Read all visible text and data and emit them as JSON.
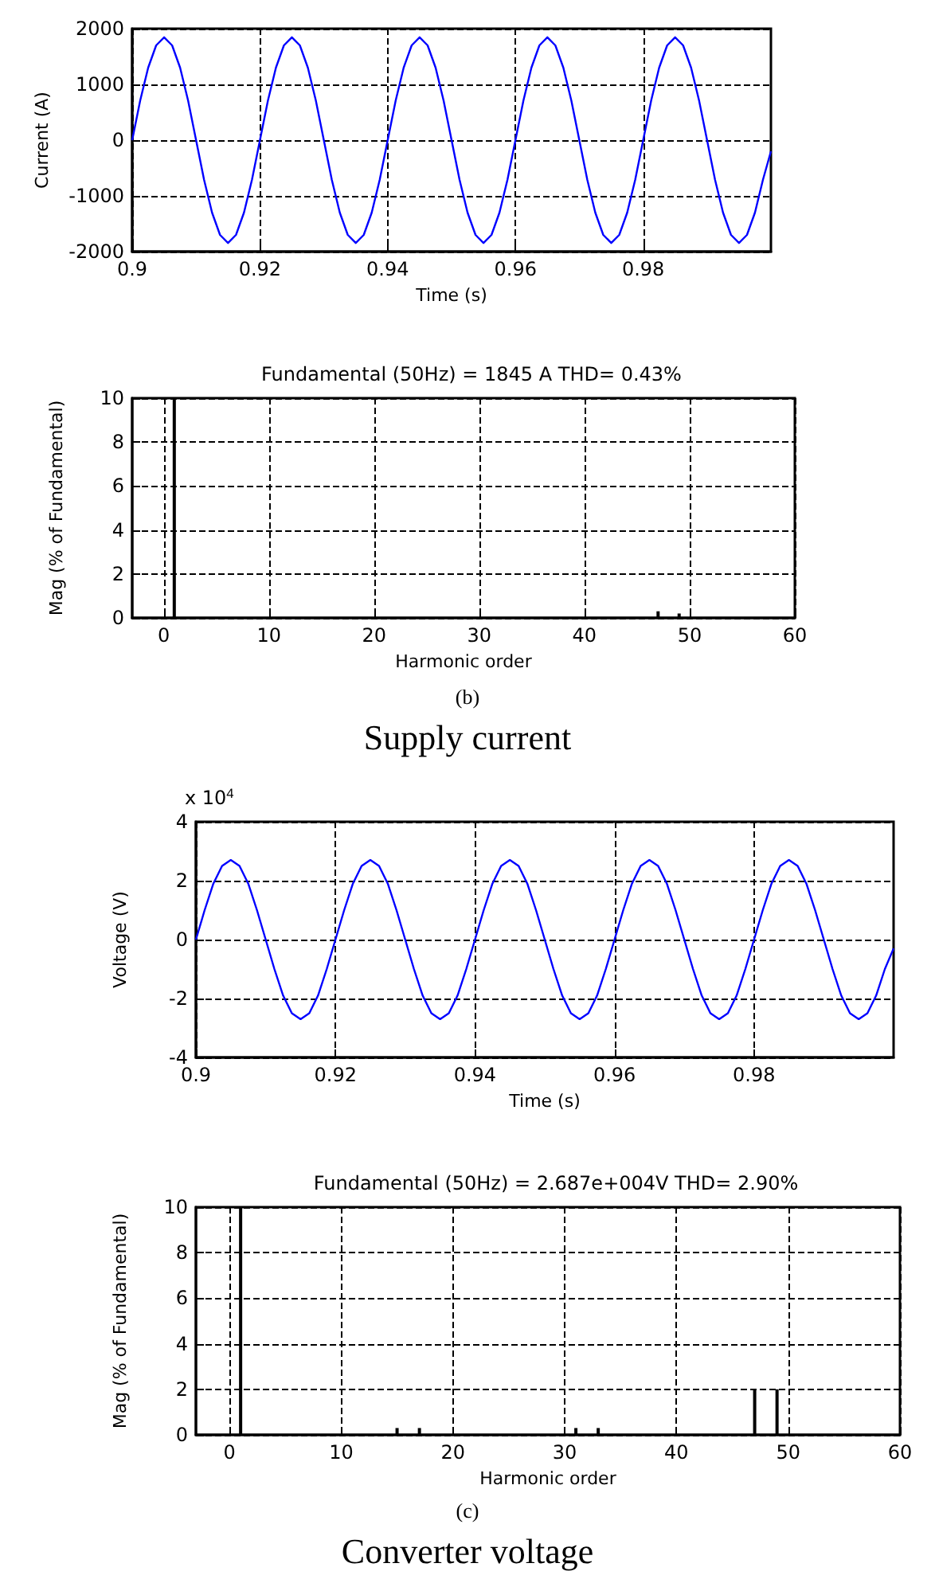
{
  "chart_data": [
    {
      "type": "line",
      "xlabel": "Time (s)",
      "ylabel": "Current (A)",
      "xlim": [
        0.9,
        1.0
      ],
      "xticks": [
        0.9,
        0.92,
        0.94,
        0.96,
        0.98
      ],
      "ylim": [
        -2000,
        2000
      ],
      "yticks": [
        -2000,
        -1000,
        0,
        1000,
        2000
      ],
      "grid": true,
      "series": [
        {
          "color": "#0000ff",
          "x": [
            0.9,
            0.90125,
            0.9025,
            0.90375,
            0.905,
            0.90625,
            0.9075,
            0.90875,
            0.91,
            0.91125,
            0.9125,
            0.91375,
            0.915,
            0.91625,
            0.9175,
            0.91875,
            0.92,
            0.92125,
            0.9225,
            0.92375,
            0.925,
            0.92625,
            0.9275,
            0.92875,
            0.93,
            0.93125,
            0.9325,
            0.93375,
            0.935,
            0.93625,
            0.9375,
            0.93875,
            0.94,
            0.94125,
            0.9425,
            0.94375,
            0.945,
            0.94625,
            0.9475,
            0.94875,
            0.95,
            0.95125,
            0.9525,
            0.95375,
            0.955,
            0.95625,
            0.9575,
            0.95875,
            0.96,
            0.96125,
            0.9625,
            0.96375,
            0.965,
            0.96625,
            0.9675,
            0.96875,
            0.97,
            0.97125,
            0.9725,
            0.97375,
            0.975,
            0.97625,
            0.9775,
            0.97875,
            0.98,
            0.98125,
            0.9825,
            0.98375,
            0.985,
            0.98625,
            0.9875,
            0.98875,
            0.99,
            0.99125,
            0.9925,
            0.99375,
            0.995,
            0.99625,
            0.9975,
            0.99875,
            1.0
          ],
          "values": [
            0,
            710,
            1300,
            1700,
            1845,
            1700,
            1300,
            710,
            0,
            -710,
            -1300,
            -1700,
            -1845,
            -1700,
            -1300,
            -710,
            0,
            710,
            1300,
            1700,
            1845,
            1700,
            1300,
            710,
            0,
            -710,
            -1300,
            -1700,
            -1845,
            -1700,
            -1300,
            -710,
            0,
            710,
            1300,
            1700,
            1845,
            1700,
            1300,
            710,
            0,
            -710,
            -1300,
            -1700,
            -1845,
            -1700,
            -1300,
            -710,
            0,
            710,
            1300,
            1700,
            1845,
            1700,
            1300,
            710,
            0,
            -710,
            -1300,
            -1700,
            -1845,
            -1700,
            -1300,
            -710,
            0,
            710,
            1300,
            1700,
            1845,
            1700,
            1300,
            710,
            0,
            -710,
            -1300,
            -1700,
            -1845,
            -1700,
            -1300,
            -710,
            -200
          ]
        }
      ]
    },
    {
      "type": "bar",
      "title": "Fundamental (50Hz) = 1845 A THD= 0.43%",
      "xlabel": "Harmonic order",
      "ylabel": "Mag (% of Fundamental)",
      "xlim": [
        -3,
        60
      ],
      "xticks": [
        0,
        10,
        20,
        30,
        40,
        50,
        60
      ],
      "ylim": [
        0,
        10
      ],
      "yticks": [
        0,
        2,
        4,
        6,
        8,
        10
      ],
      "grid": true,
      "annotations": [
        "(b)",
        "Supply current"
      ],
      "series": [
        {
          "color": "#000000",
          "x": [
            1,
            47,
            49
          ],
          "values": [
            10,
            0.3,
            0.2
          ]
        }
      ]
    },
    {
      "type": "line",
      "xlabel": "Time (s)",
      "ylabel": "Voltage (V)",
      "xlim": [
        0.9,
        1.0
      ],
      "xticks": [
        0.9,
        0.92,
        0.94,
        0.96,
        0.98
      ],
      "ylim": [
        -4,
        4
      ],
      "yticks": [
        -4,
        -2,
        0,
        2,
        4
      ],
      "grid": true,
      "annotations": [
        "x 10$^{4}$"
      ],
      "series": [
        {
          "color": "#0000ff",
          "x": [
            0.9,
            0.90125,
            0.9025,
            0.90375,
            0.905,
            0.90625,
            0.9075,
            0.90875,
            0.91,
            0.91125,
            0.9125,
            0.91375,
            0.915,
            0.91625,
            0.9175,
            0.91875,
            0.92,
            0.92125,
            0.9225,
            0.92375,
            0.925,
            0.92625,
            0.9275,
            0.92875,
            0.93,
            0.93125,
            0.9325,
            0.93375,
            0.935,
            0.93625,
            0.9375,
            0.93875,
            0.94,
            0.94125,
            0.9425,
            0.94375,
            0.945,
            0.94625,
            0.9475,
            0.94875,
            0.95,
            0.95125,
            0.9525,
            0.95375,
            0.955,
            0.95625,
            0.9575,
            0.95875,
            0.96,
            0.96125,
            0.9625,
            0.96375,
            0.965,
            0.96625,
            0.9675,
            0.96875,
            0.97,
            0.97125,
            0.9725,
            0.97375,
            0.975,
            0.97625,
            0.9775,
            0.97875,
            0.98,
            0.98125,
            0.9825,
            0.98375,
            0.985,
            0.98625,
            0.9875,
            0.98875,
            0.99,
            0.99125,
            0.9925,
            0.99375,
            0.995,
            0.99625,
            0.9975,
            0.99875,
            1.0
          ],
          "values": [
            0,
            1.0,
            1.9,
            2.5,
            2.7,
            2.5,
            1.9,
            1.0,
            0,
            -1.0,
            -1.9,
            -2.5,
            -2.7,
            -2.5,
            -1.9,
            -1.0,
            0,
            1.0,
            1.9,
            2.5,
            2.7,
            2.5,
            1.9,
            1.0,
            0,
            -1.0,
            -1.9,
            -2.5,
            -2.7,
            -2.5,
            -1.9,
            -1.0,
            0,
            1.0,
            1.9,
            2.5,
            2.7,
            2.5,
            1.9,
            1.0,
            0,
            -1.0,
            -1.9,
            -2.5,
            -2.7,
            -2.5,
            -1.9,
            -1.0,
            0,
            1.0,
            1.9,
            2.5,
            2.7,
            2.5,
            1.9,
            1.0,
            0,
            -1.0,
            -1.9,
            -2.5,
            -2.7,
            -2.5,
            -1.9,
            -1.0,
            0,
            1.0,
            1.9,
            2.5,
            2.7,
            2.5,
            1.9,
            1.0,
            0,
            -1.0,
            -1.9,
            -2.5,
            -2.7,
            -2.5,
            -1.9,
            -1.0,
            -0.3
          ]
        }
      ]
    },
    {
      "type": "bar",
      "title": "Fundamental (50Hz) = 2.687e+004V THD= 2.90%",
      "xlabel": "Harmonic order",
      "ylabel": "Mag (% of Fundamental)",
      "xlim": [
        -3,
        60
      ],
      "xticks": [
        0,
        10,
        20,
        30,
        40,
        50,
        60
      ],
      "ylim": [
        0,
        10
      ],
      "yticks": [
        0,
        2,
        4,
        6,
        8,
        10
      ],
      "grid": true,
      "annotations": [
        "(c)",
        "Converter voltage"
      ],
      "series": [
        {
          "color": "#000000",
          "x": [
            1,
            15,
            17,
            31,
            33,
            47,
            49
          ],
          "values": [
            10,
            0.3,
            0.3,
            0.3,
            0.3,
            2,
            2
          ]
        }
      ]
    }
  ]
}
